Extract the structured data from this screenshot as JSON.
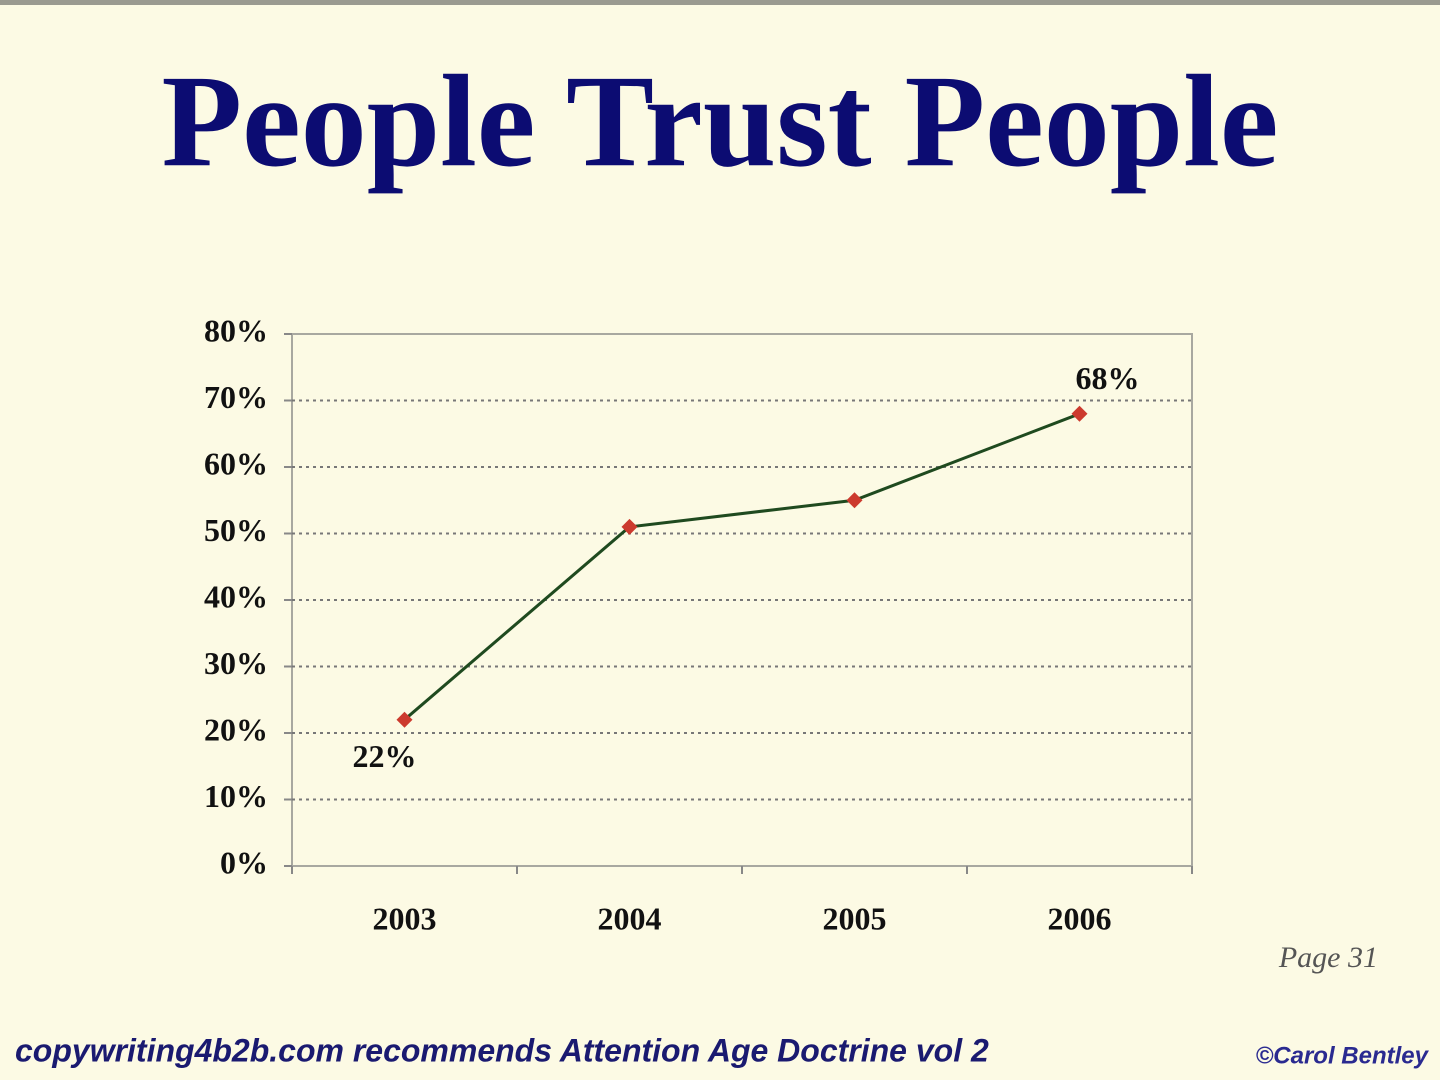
{
  "chart_data": {
    "type": "line",
    "title": "People Trust People",
    "categories": [
      "2003",
      "2004",
      "2005",
      "2006"
    ],
    "values": [
      22,
      51,
      55,
      68
    ],
    "value_labels": [
      "22%",
      null,
      null,
      "68%"
    ],
    "color": "#1f4a1f",
    "marker_color": "#cc3a2e",
    "ylim": [
      0,
      80
    ],
    "yticks": [
      {
        "value": 0,
        "label": "0%"
      },
      {
        "value": 10,
        "label": "10%"
      },
      {
        "value": 20,
        "label": "20%"
      },
      {
        "value": 30,
        "label": "30%"
      },
      {
        "value": 40,
        "label": "40%"
      },
      {
        "value": 50,
        "label": "50%"
      },
      {
        "value": 60,
        "label": "60%"
      },
      {
        "value": 70,
        "label": "70%"
      },
      {
        "value": 80,
        "label": "80%"
      }
    ],
    "grid": true,
    "page_note": "Page 31",
    "footer": "copywriting4b2b.com recommends Attention Age Doctrine vol 2",
    "copyright": "©Carol Bentley"
  }
}
